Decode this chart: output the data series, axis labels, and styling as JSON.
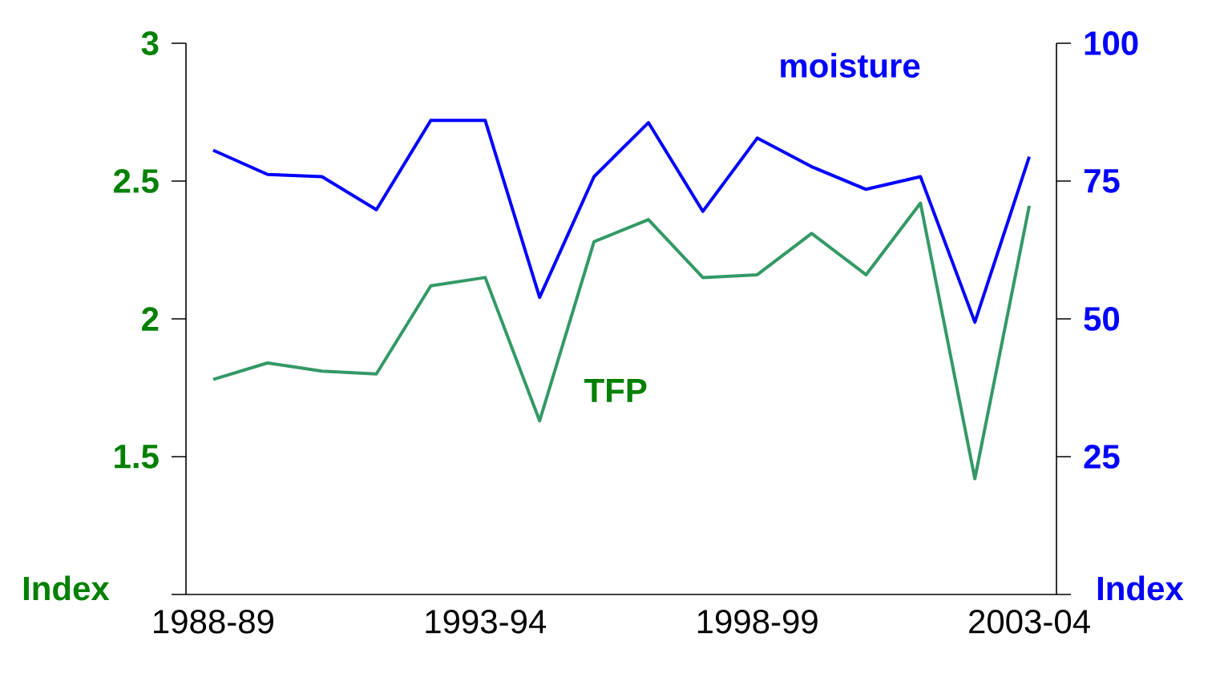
{
  "chart_data": {
    "type": "line",
    "categories": [
      "1988-89",
      null,
      null,
      null,
      null,
      "1993-94",
      null,
      null,
      null,
      null,
      "1998-99",
      null,
      null,
      null,
      null,
      "2003-04"
    ],
    "ylabel": "Index",
    "y2label": "Index",
    "ylim": [
      1,
      3
    ],
    "yticks": [
      {
        "value": 1,
        "label": null
      },
      1.5,
      2,
      2.5,
      3
    ],
    "y2lim": [
      0,
      100
    ],
    "y2ticks": [
      {
        "value": 0,
        "label": null
      },
      25,
      50,
      75,
      100
    ],
    "series": [
      {
        "name": "TFP",
        "color": "#339966",
        "values": [
          1.78,
          1.84,
          1.81,
          1.8,
          2.12,
          2.15,
          1.63,
          2.28,
          2.36,
          2.15,
          2.16,
          2.31,
          2.16,
          2.42,
          1.42,
          2.41
        ]
      },
      {
        "name": "moisture",
        "color": "#0000ff",
        "axis": "y2",
        "values": [
          80.6,
          76.2,
          75.8,
          69.8,
          86.0,
          86.0,
          53.9,
          75.8,
          85.6,
          69.5,
          82.8,
          77.6,
          73.5,
          75.8,
          49.4,
          79.4
        ]
      }
    ]
  }
}
